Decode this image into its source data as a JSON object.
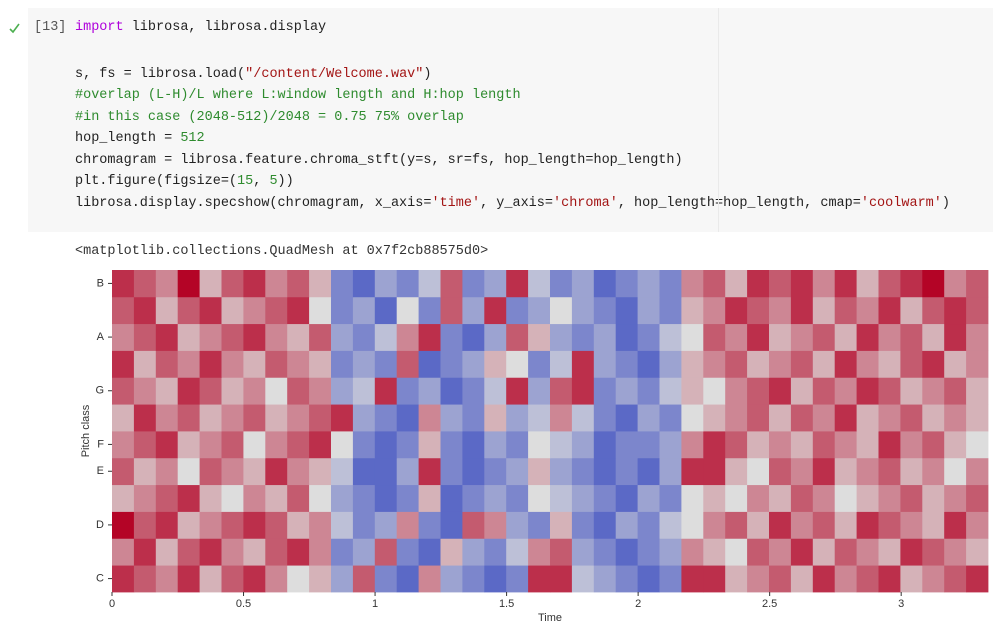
{
  "cell": {
    "prompt": "[13]",
    "lines": [
      [
        {
          "text": "import",
          "color": "#af00db"
        },
        {
          "text": " librosa, librosa.display",
          "color": "#222222"
        }
      ],
      [
        {
          "text": "s, fs = librosa.load(",
          "color": "#222222"
        },
        {
          "text": "\"/content/Welcome.wav\"",
          "color": "#a31515"
        },
        {
          "text": ")",
          "color": "#222222"
        }
      ],
      [
        {
          "text": "#overlap (L-H)/L where L:window length and H:hop length",
          "color": "#2e8b2e"
        }
      ],
      [
        {
          "text": "#in this case (2048-512)/2048 = 0.75 75% overlap",
          "color": "#2e8b2e"
        }
      ],
      [
        {
          "text": "hop_length = ",
          "color": "#222222"
        },
        {
          "text": "512",
          "color": "#2e8b2e"
        }
      ],
      [
        {
          "text": "chromagram = librosa.feature.chroma_stft(y=s, sr=fs, hop_length=hop_length)",
          "color": "#222222"
        }
      ],
      [
        {
          "text": "plt.figure(figsize=(",
          "color": "#222222"
        },
        {
          "text": "15",
          "color": "#2e8b2e"
        },
        {
          "text": ", ",
          "color": "#222222"
        },
        {
          "text": "5",
          "color": "#2e8b2e"
        },
        {
          "text": "))",
          "color": "#222222"
        }
      ],
      [
        {
          "text": "librosa.display.specshow(chromagram, x_axis=",
          "color": "#222222"
        },
        {
          "text": "'time'",
          "color": "#a31515"
        },
        {
          "text": ", y_axis=",
          "color": "#222222"
        },
        {
          "text": "'chroma'",
          "color": "#a31515"
        },
        {
          "text": ", hop_length=hop_length, cmap=",
          "color": "#222222"
        },
        {
          "text": "'coolwarm'",
          "color": "#a31515"
        },
        {
          "text": ")",
          "color": "#222222"
        }
      ]
    ],
    "output": "<matplotlib.collections.QuadMesh at 0x7f2cb88575d0>"
  },
  "chart_data": {
    "type": "heatmap",
    "xlabel": "Time",
    "ylabel": "Pitch class",
    "xlim": [
      0,
      3.33
    ],
    "xticks": [
      0,
      0.5,
      1,
      1.5,
      2,
      2.5,
      3
    ],
    "rows": [
      "C",
      null,
      "D",
      null,
      "E",
      "F",
      null,
      "G",
      null,
      "A",
      null,
      "B"
    ],
    "zlim": [
      0,
      1
    ],
    "colors": [
      "#3b4cc0",
      "#dddddd",
      "#b40426"
    ],
    "z": [
      [
        0.9,
        0.8,
        0.7,
        0.9,
        0.6,
        0.8,
        0.9,
        0.7,
        0.5,
        0.6,
        0.3,
        0.8,
        0.2,
        0.1,
        0.7,
        0.3,
        0.2,
        0.1,
        0.2,
        0.9,
        0.9,
        0.4,
        0.3,
        0.2,
        0.1,
        0.2,
        0.9,
        0.9,
        0.6,
        0.7,
        0.8,
        0.6,
        0.9,
        0.7,
        0.8,
        0.9,
        0.6,
        0.7,
        0.8,
        0.9
      ],
      [
        0.7,
        0.9,
        0.6,
        0.8,
        0.9,
        0.7,
        0.6,
        0.8,
        0.9,
        0.7,
        0.2,
        0.3,
        0.8,
        0.2,
        0.1,
        0.6,
        0.3,
        0.2,
        0.4,
        0.7,
        0.8,
        0.3,
        0.2,
        0.1,
        0.2,
        0.3,
        0.7,
        0.6,
        0.5,
        0.8,
        0.7,
        0.9,
        0.6,
        0.8,
        0.7,
        0.6,
        0.9,
        0.8,
        0.7,
        0.6
      ],
      [
        1,
        0.8,
        0.9,
        0.6,
        0.7,
        0.8,
        0.9,
        0.8,
        0.6,
        0.7,
        0.4,
        0.2,
        0.3,
        0.7,
        0.2,
        0.1,
        0.8,
        0.7,
        0.3,
        0.2,
        0.6,
        0.2,
        0.1,
        0.3,
        0.2,
        0.4,
        0.5,
        0.7,
        0.8,
        0.6,
        0.9,
        0.7,
        0.8,
        0.6,
        0.9,
        0.8,
        0.7,
        0.6,
        0.9,
        0.7
      ],
      [
        0.6,
        0.7,
        0.8,
        0.9,
        0.6,
        0.5,
        0.7,
        0.6,
        0.8,
        0.5,
        0.3,
        0.2,
        0.1,
        0.2,
        0.6,
        0.1,
        0.2,
        0.3,
        0.2,
        0.5,
        0.4,
        0.3,
        0.2,
        0.1,
        0.3,
        0.2,
        0.5,
        0.6,
        0.5,
        0.7,
        0.6,
        0.8,
        0.7,
        0.5,
        0.6,
        0.7,
        0.8,
        0.6,
        0.7,
        0.8
      ],
      [
        0.8,
        0.6,
        0.7,
        0.5,
        0.8,
        0.7,
        0.6,
        0.9,
        0.7,
        0.6,
        0.4,
        0.1,
        0.1,
        0.3,
        0.9,
        0.2,
        0.1,
        0.2,
        0.3,
        0.6,
        0.3,
        0.2,
        0.1,
        0.2,
        0.1,
        0.3,
        0.9,
        0.9,
        0.6,
        0.5,
        0.8,
        0.7,
        0.9,
        0.6,
        0.7,
        0.8,
        0.6,
        0.7,
        0.5,
        0.7
      ],
      [
        0.7,
        0.8,
        0.9,
        0.6,
        0.7,
        0.8,
        0.5,
        0.7,
        0.8,
        0.9,
        0.5,
        0.2,
        0.1,
        0.2,
        0.6,
        0.2,
        0.1,
        0.3,
        0.2,
        0.5,
        0.4,
        0.3,
        0.1,
        0.2,
        0.2,
        0.3,
        0.7,
        0.9,
        0.8,
        0.6,
        0.7,
        0.6,
        0.8,
        0.7,
        0.6,
        0.9,
        0.7,
        0.8,
        0.6,
        0.5
      ],
      [
        0.6,
        0.9,
        0.7,
        0.8,
        0.6,
        0.7,
        0.8,
        0.6,
        0.7,
        0.8,
        0.9,
        0.3,
        0.2,
        0.1,
        0.7,
        0.3,
        0.2,
        0.6,
        0.3,
        0.4,
        0.7,
        0.4,
        0.2,
        0.1,
        0.3,
        0.2,
        0.5,
        0.6,
        0.7,
        0.8,
        0.6,
        0.8,
        0.7,
        0.9,
        0.6,
        0.7,
        0.8,
        0.6,
        0.7,
        0.6
      ],
      [
        0.8,
        0.7,
        0.6,
        0.9,
        0.8,
        0.6,
        0.7,
        0.5,
        0.8,
        0.7,
        0.3,
        0.4,
        0.9,
        0.2,
        0.3,
        0.1,
        0.2,
        0.4,
        0.9,
        0.3,
        0.8,
        0.9,
        0.2,
        0.3,
        0.2,
        0.4,
        0.6,
        0.5,
        0.7,
        0.8,
        0.9,
        0.6,
        0.8,
        0.7,
        0.9,
        0.8,
        0.6,
        0.7,
        0.8,
        0.6
      ],
      [
        0.9,
        0.6,
        0.8,
        0.7,
        0.9,
        0.7,
        0.6,
        0.8,
        0.7,
        0.6,
        0.2,
        0.3,
        0.2,
        0.8,
        0.1,
        0.2,
        0.3,
        0.6,
        0.5,
        0.2,
        0.4,
        0.9,
        0.3,
        0.2,
        0.1,
        0.3,
        0.6,
        0.7,
        0.8,
        0.6,
        0.7,
        0.8,
        0.6,
        0.9,
        0.7,
        0.6,
        0.8,
        0.9,
        0.6,
        0.7
      ],
      [
        0.7,
        0.8,
        0.9,
        0.6,
        0.7,
        0.8,
        0.9,
        0.7,
        0.6,
        0.8,
        0.3,
        0.2,
        0.4,
        0.7,
        0.9,
        0.2,
        0.1,
        0.3,
        0.8,
        0.6,
        0.3,
        0.2,
        0.3,
        0.1,
        0.2,
        0.4,
        0.5,
        0.8,
        0.7,
        0.9,
        0.6,
        0.7,
        0.8,
        0.6,
        0.9,
        0.7,
        0.8,
        0.6,
        0.9,
        0.7
      ],
      [
        0.8,
        0.9,
        0.6,
        0.8,
        0.9,
        0.6,
        0.7,
        0.8,
        0.9,
        0.5,
        0.2,
        0.3,
        0.1,
        0.5,
        0.2,
        0.8,
        0.3,
        0.9,
        0.2,
        0.3,
        0.5,
        0.3,
        0.2,
        0.1,
        0.3,
        0.2,
        0.6,
        0.7,
        0.9,
        0.8,
        0.7,
        0.9,
        0.6,
        0.8,
        0.7,
        0.9,
        0.6,
        0.8,
        0.9,
        0.8
      ],
      [
        0.9,
        0.8,
        0.7,
        1,
        0.6,
        0.8,
        0.9,
        0.7,
        0.8,
        0.6,
        0.2,
        0.1,
        0.3,
        0.2,
        0.4,
        0.8,
        0.2,
        0.3,
        0.9,
        0.4,
        0.2,
        0.3,
        0.1,
        0.2,
        0.3,
        0.2,
        0.7,
        0.8,
        0.6,
        0.9,
        0.8,
        0.9,
        0.7,
        0.9,
        0.6,
        0.8,
        0.9,
        1,
        0.7,
        0.8
      ]
    ]
  }
}
